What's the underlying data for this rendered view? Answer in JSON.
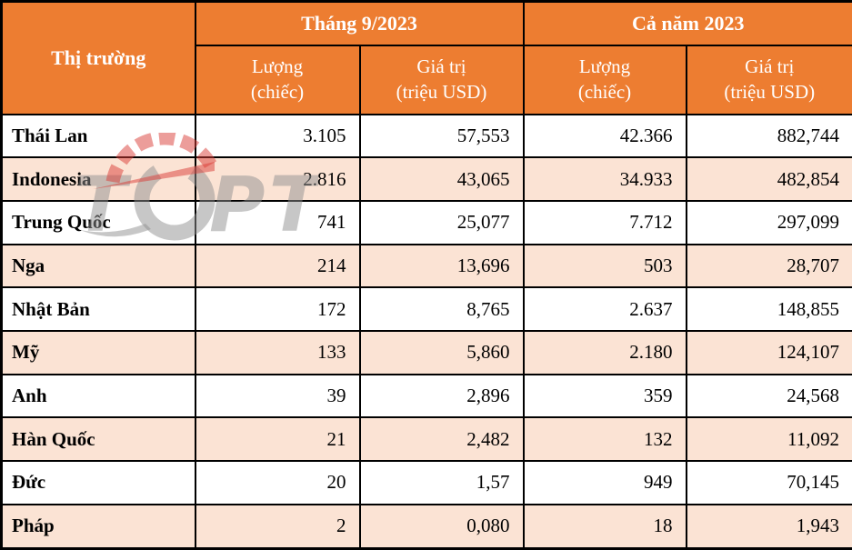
{
  "colors": {
    "header_bg": "#ED7D31",
    "alt_row_bg": "#FBE3D4",
    "border": "#000000",
    "header_text": "#FFFFFF",
    "watermark_gray": "#8f8f8f",
    "watermark_red": "#D93B35"
  },
  "watermark": {
    "name": "TOPT logo watermark"
  },
  "table": {
    "corner_header": "Thị trường",
    "group_headers": [
      "Tháng 9/2023",
      "Cả năm 2023"
    ],
    "sub_headers": [
      "Lượng\n(chiếc)",
      "Giá trị\n(triệu USD)",
      "Lượng\n(chiếc)",
      "Giá trị\n(triệu USD)"
    ],
    "rows": [
      {
        "market": "Thái Lan",
        "values": [
          "3.105",
          "57,553",
          "42.366",
          "882,744"
        ]
      },
      {
        "market": "Indonesia",
        "values": [
          "2.816",
          "43,065",
          "34.933",
          "482,854"
        ]
      },
      {
        "market": "Trung Quốc",
        "values": [
          "741",
          "25,077",
          "7.712",
          "297,099"
        ]
      },
      {
        "market": "Nga",
        "values": [
          "214",
          "13,696",
          "503",
          "28,707"
        ]
      },
      {
        "market": "Nhật Bản",
        "values": [
          "172",
          "8,765",
          "2.637",
          "148,855"
        ]
      },
      {
        "market": "Mỹ",
        "values": [
          "133",
          "5,860",
          "2.180",
          "124,107"
        ]
      },
      {
        "market": "Anh",
        "values": [
          "39",
          "2,896",
          "359",
          "24,568"
        ]
      },
      {
        "market": "Hàn Quốc",
        "values": [
          "21",
          "2,482",
          "132",
          "11,092"
        ]
      },
      {
        "market": "Đức",
        "values": [
          "20",
          "1,57",
          "949",
          "70,145"
        ]
      },
      {
        "market": "Pháp",
        "values": [
          "2",
          "0,080",
          "18",
          "1,943"
        ]
      }
    ]
  },
  "chart_data": {
    "type": "table",
    "title": "",
    "columns": [
      "Thị trường",
      "Tháng 9/2023 - Lượng (chiếc)",
      "Tháng 9/2023 - Giá trị (triệu USD)",
      "Cả năm 2023 - Lượng (chiếc)",
      "Cả năm 2023 - Giá trị (triệu USD)"
    ],
    "rows": [
      [
        "Thái Lan",
        "3.105",
        "57,553",
        "42.366",
        "882,744"
      ],
      [
        "Indonesia",
        "2.816",
        "43,065",
        "34.933",
        "482,854"
      ],
      [
        "Trung Quốc",
        "741",
        "25,077",
        "7.712",
        "297,099"
      ],
      [
        "Nga",
        "214",
        "13,696",
        "503",
        "28,707"
      ],
      [
        "Nhật Bản",
        "172",
        "8,765",
        "2.637",
        "148,855"
      ],
      [
        "Mỹ",
        "133",
        "5,860",
        "2.180",
        "124,107"
      ],
      [
        "Anh",
        "39",
        "2,896",
        "359",
        "24,568"
      ],
      [
        "Hàn Quốc",
        "21",
        "2,482",
        "132",
        "11,092"
      ],
      [
        "Đức",
        "20",
        "1,57",
        "949",
        "70,145"
      ],
      [
        "Pháp",
        "2",
        "0,080",
        "18",
        "1,943"
      ]
    ]
  }
}
